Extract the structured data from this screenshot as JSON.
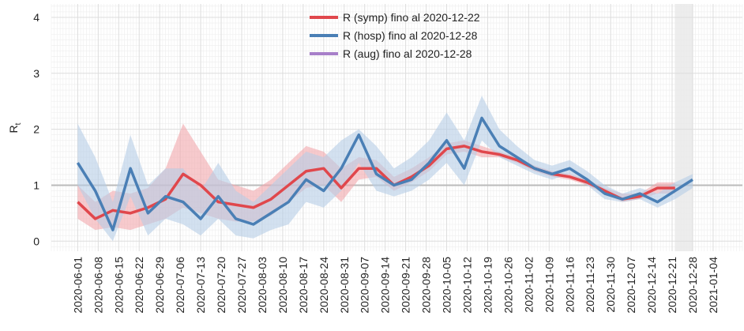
{
  "chart_data": {
    "type": "line",
    "ylabel": "R",
    "ylabel_sub": "t",
    "x": [
      "2020-06-01",
      "2020-06-07",
      "2020-06-13",
      "2020-06-19",
      "2020-06-25",
      "2020-07-01",
      "2020-07-07",
      "2020-07-13",
      "2020-07-19",
      "2020-07-25",
      "2020-07-31",
      "2020-08-06",
      "2020-08-12",
      "2020-08-18",
      "2020-08-24",
      "2020-08-30",
      "2020-09-05",
      "2020-09-11",
      "2020-09-17",
      "2020-09-23",
      "2020-09-29",
      "2020-10-05",
      "2020-10-11",
      "2020-10-17",
      "2020-10-23",
      "2020-10-29",
      "2020-11-04",
      "2020-11-10",
      "2020-11-16",
      "2020-11-22",
      "2020-11-28",
      "2020-12-04",
      "2020-12-10",
      "2020-12-16",
      "2020-12-22",
      "2020-12-28"
    ],
    "series": [
      {
        "name": "R (symp) fino al 2020-12-22",
        "color": "#e0474c",
        "band_color": "#f2a7ab",
        "values": [
          0.7,
          0.4,
          0.55,
          0.5,
          0.6,
          0.75,
          1.2,
          1.0,
          0.7,
          0.65,
          0.6,
          0.75,
          1.0,
          1.25,
          1.3,
          0.95,
          1.3,
          1.3,
          1.0,
          1.15,
          1.35,
          1.65,
          1.7,
          1.6,
          1.55,
          1.45,
          1.3,
          1.2,
          1.15,
          1.05,
          0.9,
          0.75,
          0.8,
          0.95,
          0.95,
          null
        ],
        "lower": [
          0.4,
          0.2,
          0.25,
          0.2,
          0.3,
          0.4,
          0.6,
          0.5,
          0.4,
          0.35,
          0.35,
          0.45,
          0.7,
          0.95,
          1.0,
          0.7,
          1.1,
          1.15,
          0.9,
          1.05,
          1.25,
          1.55,
          1.6,
          1.5,
          1.5,
          1.4,
          1.25,
          1.15,
          1.1,
          1.0,
          0.85,
          0.7,
          0.75,
          0.85,
          0.85,
          null
        ],
        "upper": [
          1.0,
          0.7,
          0.9,
          0.85,
          0.95,
          1.3,
          2.1,
          1.6,
          1.1,
          1.0,
          0.9,
          1.1,
          1.4,
          1.7,
          1.6,
          1.3,
          1.5,
          1.45,
          1.15,
          1.3,
          1.5,
          1.75,
          1.8,
          1.7,
          1.6,
          1.5,
          1.35,
          1.25,
          1.2,
          1.1,
          0.95,
          0.85,
          0.85,
          1.05,
          1.05,
          null
        ]
      },
      {
        "name": "R (hosp) fino al 2020-12-28",
        "color": "#4a7fb5",
        "band_color": "#b6cde6",
        "values": [
          1.4,
          0.9,
          0.2,
          1.3,
          0.5,
          0.8,
          0.7,
          0.4,
          0.8,
          0.4,
          0.3,
          0.5,
          0.7,
          1.1,
          0.9,
          1.3,
          1.9,
          1.2,
          1.0,
          1.1,
          1.4,
          1.8,
          1.3,
          2.2,
          1.7,
          1.5,
          1.3,
          1.2,
          1.3,
          1.1,
          0.85,
          0.75,
          0.85,
          0.7,
          0.9,
          1.1
        ],
        "lower": [
          1.0,
          0.4,
          0.0,
          0.8,
          0.1,
          0.4,
          0.3,
          0.1,
          0.4,
          0.1,
          0.05,
          0.2,
          0.3,
          0.7,
          0.6,
          0.9,
          1.4,
          0.9,
          0.8,
          0.9,
          1.1,
          1.4,
          1.0,
          1.8,
          1.5,
          1.35,
          1.2,
          1.1,
          1.2,
          1.0,
          0.75,
          0.7,
          0.75,
          0.6,
          0.75,
          0.95
        ],
        "upper": [
          2.1,
          1.5,
          0.7,
          1.9,
          1.0,
          1.3,
          1.3,
          0.9,
          1.4,
          0.9,
          0.7,
          1.0,
          1.3,
          1.6,
          1.5,
          1.8,
          2.0,
          1.7,
          1.3,
          1.5,
          1.8,
          2.3,
          1.8,
          2.6,
          2.0,
          1.7,
          1.45,
          1.35,
          1.45,
          1.25,
          1.0,
          0.85,
          0.95,
          0.85,
          1.05,
          1.2
        ]
      },
      {
        "name": "R (aug) fino al 2020-12-28",
        "color": "#a77fc9",
        "band_color": "#dccbec",
        "values": [
          null,
          null,
          null,
          null,
          null,
          null,
          null,
          null,
          null,
          null,
          null,
          null,
          null,
          null,
          null,
          null,
          null,
          null,
          null,
          null,
          null,
          null,
          null,
          null,
          null,
          null,
          null,
          null,
          null,
          null,
          null,
          null,
          null,
          null,
          null,
          null
        ],
        "lower": [
          null,
          null,
          null,
          null,
          null,
          null,
          null,
          null,
          null,
          null,
          null,
          null,
          null,
          null,
          null,
          null,
          null,
          null,
          null,
          null,
          null,
          null,
          null,
          null,
          null,
          null,
          null,
          null,
          null,
          null,
          null,
          null,
          null,
          null,
          null,
          null
        ],
        "upper": [
          null,
          null,
          null,
          null,
          null,
          null,
          null,
          null,
          null,
          null,
          null,
          null,
          null,
          null,
          null,
          null,
          null,
          null,
          null,
          null,
          null,
          null,
          null,
          null,
          null,
          null,
          null,
          null,
          null,
          null,
          null,
          null,
          null,
          null,
          null,
          null
        ]
      }
    ],
    "xlim": [
      "2020-05-23",
      "2021-01-14"
    ],
    "xticks": [
      "2020-06-01",
      "2020-06-08",
      "2020-06-15",
      "2020-06-22",
      "2020-06-29",
      "2020-07-06",
      "2020-07-13",
      "2020-07-20",
      "2020-07-27",
      "2020-08-03",
      "2020-08-10",
      "2020-08-17",
      "2020-08-24",
      "2020-08-31",
      "2020-09-07",
      "2020-09-14",
      "2020-09-21",
      "2020-09-28",
      "2020-10-05",
      "2020-10-12",
      "2020-10-19",
      "2020-10-26",
      "2020-11-02",
      "2020-11-09",
      "2020-11-16",
      "2020-11-23",
      "2020-11-30",
      "2020-12-07",
      "2020-12-14",
      "2020-12-21",
      "2020-12-28",
      "2021-01-04"
    ],
    "ylim": [
      -0.18,
      4.24
    ],
    "yticks": [
      0,
      1,
      2,
      3,
      4
    ],
    "hline": 1,
    "shaded_region": [
      "2020-12-22",
      "2020-12-28"
    ],
    "grid": true,
    "legend": "top"
  }
}
